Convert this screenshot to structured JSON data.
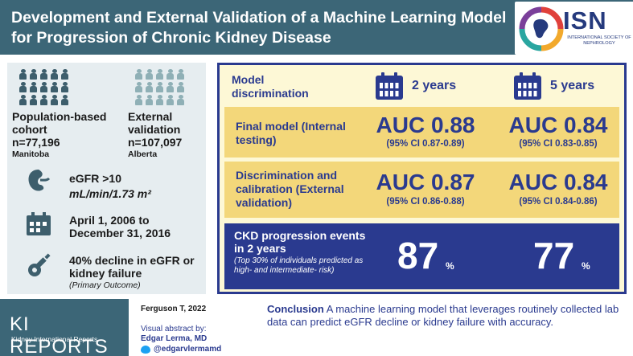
{
  "header": {
    "title": "Development and External Validation of a Machine Learning Model for Progression of Chronic Kidney Disease",
    "logo_text": "ISN",
    "logo_sub": "INTERNATIONAL SOCIETY OF NEPHROLOGY"
  },
  "left": {
    "cohort1": {
      "label": "Population-based cohort",
      "n": "n=77,196",
      "place": "Manitoba",
      "icon": "people-group-icon",
      "color": "#3d5e6c"
    },
    "cohort2": {
      "label": "External validation",
      "n": "n=107,097",
      "place": "Alberta",
      "icon": "people-group-icon",
      "color": "#8fb0b6"
    },
    "egfr": {
      "label": "eGFR >10",
      "unit": "mL/min/1.73 m²",
      "icon": "kidney-icon"
    },
    "dates": {
      "text": "April 1, 2006 to December 31, 2016",
      "icon": "calendar-icon"
    },
    "outcome": {
      "text": "40% decline in eGFR or kidney failure",
      "note": "(Primary Outcome)",
      "icon": "key-icon"
    }
  },
  "right": {
    "head_label": "Model discrimination",
    "year1": "2 years",
    "year2": "5 years",
    "rows": [
      {
        "label": "Final model (Internal testing)",
        "auc1": "AUC 0.88",
        "ci1": "(95% CI 0.87-0.89)",
        "auc2": "AUC 0.84",
        "ci2": "(95% CI 0.83-0.85)"
      },
      {
        "label": "Discrimination and calibration (External validation)",
        "auc1": "AUC 0.87",
        "ci1": "(95% CI 0.86-0.88)",
        "auc2": "AUC 0.84",
        "ci2": "(95% CI 0.84-0.86)"
      }
    ],
    "events": {
      "title": "CKD progression events in 2 years",
      "note": "(Top 30% of individuals predicted as high- and intermediate- risk)",
      "val1": "87",
      "val2": "77",
      "pct": "%"
    }
  },
  "footer": {
    "brand": "KI REPORTS",
    "brand_sub": "Kidney International Reports",
    "author": "Ferguson T, 2022",
    "by": "Visual abstract by:",
    "name": "Edgar Lerma, MD",
    "handle": "@edgarvlermamd",
    "conclusion_label": "Conclusion",
    "conclusion_text": "A machine learning model that leverages routinely collected lab data can predict eGFR decline or kidney failure with accuracy."
  },
  "colors": {
    "header": "#3c6677",
    "navy": "#2a3a8f",
    "gold": "#f3d77a",
    "cream": "#fdf8d6",
    "left_bg": "#e6edf0"
  }
}
